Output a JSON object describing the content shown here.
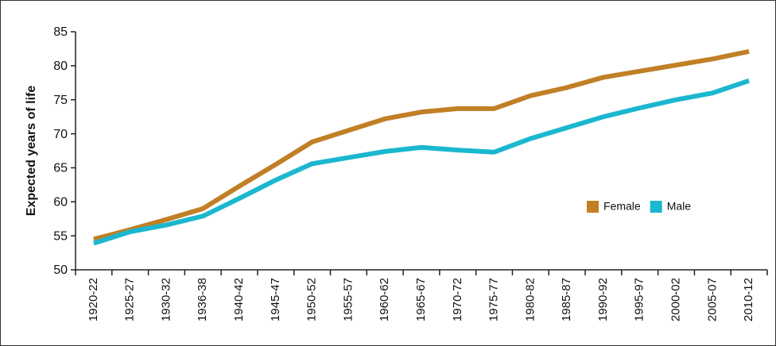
{
  "chart_data": {
    "type": "line",
    "y_label": "Expected years of life",
    "categories": [
      "1920-22",
      "1925-27",
      "1930-32",
      "1936-38",
      "1940-42",
      "1945-47",
      "1950-52",
      "1955-57",
      "1960-62",
      "1965-67",
      "1970-72",
      "1975-77",
      "1980-82",
      "1985-87",
      "1990-92",
      "1995-97",
      "2000-02",
      "2005-07",
      "2010-12"
    ],
    "series": [
      {
        "name": "Female",
        "color": "#c17f26",
        "values": [
          54.5,
          55.9,
          57.4,
          59.0,
          62.3,
          65.5,
          68.8,
          70.5,
          72.2,
          73.2,
          73.7,
          73.7,
          75.6,
          76.8,
          78.3,
          79.2,
          80.1,
          81.0,
          82.1
        ]
      },
      {
        "name": "Male",
        "color": "#1bb7cf",
        "values": [
          53.9,
          55.6,
          56.6,
          57.9,
          60.5,
          63.2,
          65.6,
          66.5,
          67.4,
          68.0,
          67.6,
          67.3,
          69.3,
          70.9,
          72.5,
          73.8,
          75.0,
          76.0,
          77.8
        ]
      }
    ],
    "ylim": [
      50,
      85
    ],
    "yticks": [
      50,
      55,
      60,
      65,
      70,
      75,
      80,
      85
    ],
    "grid": false,
    "legend": "right"
  }
}
